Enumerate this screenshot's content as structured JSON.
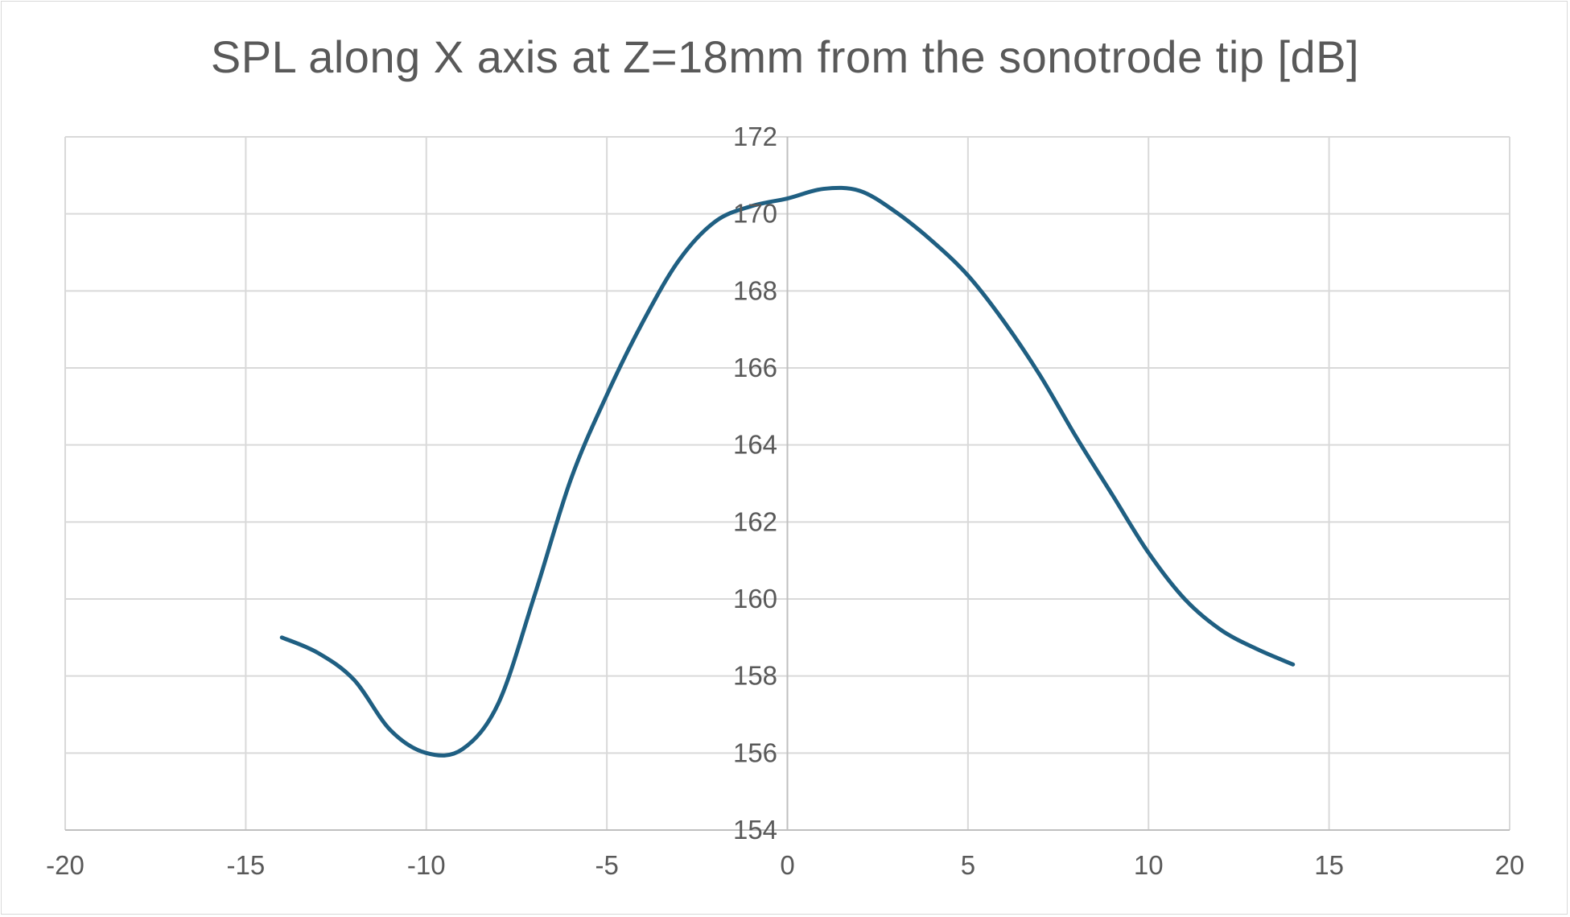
{
  "chart_data": {
    "type": "line",
    "title": "SPL along X axis at Z=18mm from the sonotrode tip [dB]",
    "xlabel": "",
    "ylabel": "",
    "xlim": [
      -20,
      20
    ],
    "ylim": [
      154,
      172
    ],
    "xticks": [
      -20,
      -15,
      -10,
      -5,
      0,
      5,
      10,
      15,
      20
    ],
    "yticks": [
      154,
      156,
      158,
      160,
      162,
      164,
      166,
      168,
      170,
      172
    ],
    "grid": true,
    "legend": "none",
    "series": [
      {
        "color": "#1f5f82",
        "x": [
          -14,
          -13,
          -12,
          -11,
          -10,
          -9,
          -8,
          -7,
          -6,
          -5,
          -4,
          -3,
          -2,
          -1,
          0,
          1,
          2,
          3,
          4,
          5,
          6,
          7,
          8,
          9,
          10,
          11,
          12,
          13,
          14
        ],
        "y": [
          159.0,
          158.6,
          157.9,
          156.6,
          156.0,
          156.1,
          157.3,
          160.1,
          163.1,
          165.3,
          167.2,
          168.8,
          169.8,
          170.2,
          170.4,
          170.65,
          170.6,
          170.05,
          169.3,
          168.4,
          167.2,
          165.8,
          164.2,
          162.7,
          161.2,
          160.0,
          159.2,
          158.7,
          158.3
        ]
      }
    ]
  }
}
